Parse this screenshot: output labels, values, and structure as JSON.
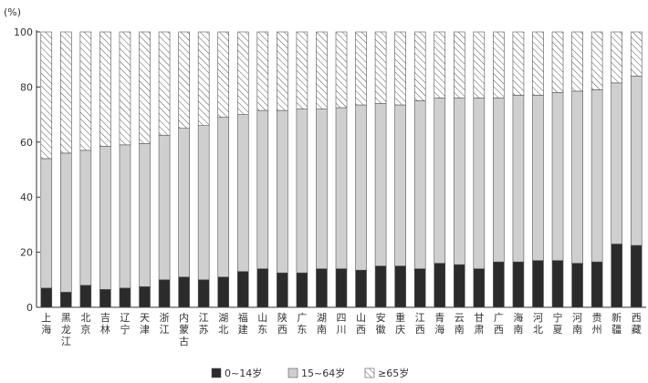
{
  "chart_data": {
    "type": "bar",
    "stacked": true,
    "ylabel": "(%)",
    "ylim": [
      0,
      100
    ],
    "yticks": [
      0,
      20,
      40,
      60,
      80,
      100
    ],
    "categories": [
      "上海",
      "黑龙江",
      "北京",
      "吉林",
      "辽宁",
      "天津",
      "浙江",
      "内蒙古",
      "江苏",
      "湖北",
      "福建",
      "山东",
      "陕西",
      "广东",
      "湖南",
      "四川",
      "山西",
      "安徽",
      "重庆",
      "江西",
      "青海",
      "云南",
      "甘肃",
      "广西",
      "海南",
      "河北",
      "宁夏",
      "河南",
      "贵州",
      "新疆",
      "西藏"
    ],
    "series": [
      {
        "name": "0~14岁",
        "values": [
          7,
          5.5,
          8,
          6.5,
          7,
          7.5,
          10,
          11,
          10,
          11,
          13,
          14,
          12.5,
          12.5,
          14,
          14,
          13.5,
          15,
          15,
          14,
          16,
          15.5,
          14,
          16.5,
          16.5,
          17,
          17,
          16,
          16.5,
          23,
          22.5
        ]
      },
      {
        "name": "15~64岁",
        "values": [
          47,
          50.5,
          49,
          52,
          52,
          52,
          52.5,
          54,
          56,
          58,
          57,
          57.5,
          59,
          59.5,
          58,
          58.5,
          60,
          59,
          58.5,
          61,
          60,
          60.5,
          62,
          59.5,
          60.5,
          60,
          61,
          62.5,
          62.5,
          58.5,
          61.5
        ]
      },
      {
        "name": "≥65岁",
        "values": [
          46,
          44,
          43,
          41.5,
          41,
          40.5,
          37.5,
          35,
          34,
          31,
          30,
          28.5,
          28.5,
          28,
          28,
          27.5,
          26.5,
          26,
          26.5,
          25,
          24,
          24,
          24,
          24,
          23,
          23,
          22,
          21.5,
          21,
          18.5,
          16
        ]
      }
    ],
    "colors": {
      "young": "#2b2b2b",
      "working": "#cfcfcf",
      "old_fill": "#ffffff",
      "hatch": "#555555",
      "axis": "#333333"
    },
    "legend_position": "bottom-center",
    "grid": false
  }
}
